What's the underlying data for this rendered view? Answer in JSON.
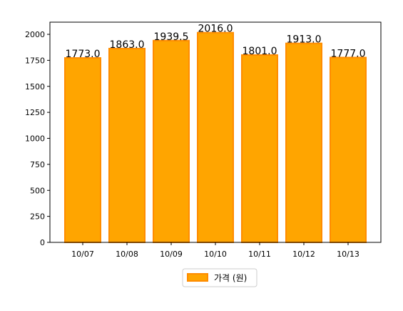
{
  "chart_data": {
    "type": "bar",
    "categories": [
      "10/07",
      "10/08",
      "10/09",
      "10/10",
      "10/11",
      "10/12",
      "10/13"
    ],
    "series": [
      {
        "name": "가격 (원)",
        "values": [
          1773.0,
          1863.0,
          1939.5,
          2016.0,
          1801.0,
          1913.0,
          1777.0
        ],
        "data_labels": [
          "1773.0",
          "1863.0",
          "1939.5",
          "2016.0",
          "1801.0",
          "1913.0",
          "1777.0"
        ]
      }
    ],
    "yticks": [
      0,
      250,
      500,
      750,
      1000,
      1250,
      1500,
      1750,
      2000
    ],
    "ylim": [
      0,
      2117
    ],
    "xlabel": "",
    "ylabel": "",
    "title": "",
    "grid": false,
    "legend_position": "bottom-center",
    "colors": {
      "bar_fill": "#FFA500",
      "bar_edge": "#FF8C00",
      "axis": "#000000",
      "text": "#000000",
      "legend_border": "#cccccc"
    }
  }
}
